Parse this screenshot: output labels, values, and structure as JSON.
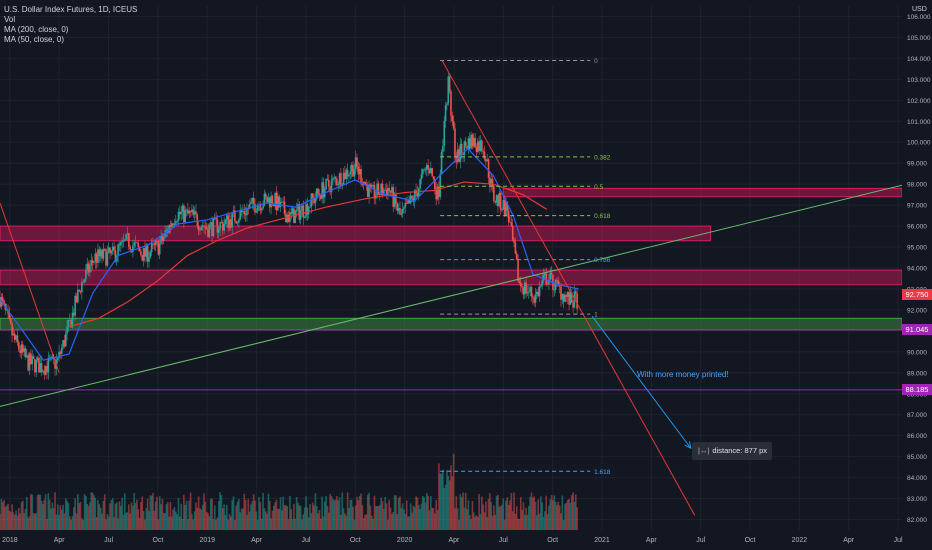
{
  "legend": {
    "symbol": "U.S. Dollar Index Futures, 1D, ICEUS",
    "vol": "Vol",
    "ma200": "MA (200, close, 0)",
    "ma50": "MA (50, close, 0)"
  },
  "axis": {
    "currency": "USD"
  },
  "annotations": {
    "arrow_text": "With more money printed!",
    "tooltip_text": "distance: 877 px",
    "tooltip_icon": "measure-icon"
  },
  "price_tags": [
    {
      "label": "92.750",
      "value": 92.75,
      "color": "#f23645"
    },
    {
      "label": "91.045",
      "value": 91.045,
      "color": "#9c27b0"
    },
    {
      "label": "88.185",
      "value": 88.185,
      "color": "#9c27b0"
    }
  ],
  "colors": {
    "background": "#131722",
    "grid": "#1e222d",
    "candle_up": "#26a69a",
    "candle_down": "#ef5350",
    "ma200": "#e53935",
    "ma50": "#2962ff",
    "zone_red": "#d81b60",
    "zone_green": "#43a047",
    "trend_green": "#66bb6a",
    "trend_red": "#e53935",
    "fib_text": "#8bc34a"
  },
  "chart_data": {
    "type": "candlestick",
    "title": "U.S. Dollar Index Futures, 1D, ICEUS",
    "x_ticks": [
      "2018",
      "Apr",
      "Jul",
      "Oct",
      "2019",
      "Apr",
      "Jul",
      "Oct",
      "2020",
      "Apr",
      "Jul",
      "Oct",
      "2021",
      "Apr",
      "Jul",
      "Oct",
      "2022",
      "Apr",
      "Jul"
    ],
    "x_tick_dates": [
      2018.0,
      2018.25,
      2018.5,
      2018.75,
      2019.0,
      2019.25,
      2019.5,
      2019.75,
      2020.0,
      2020.25,
      2020.5,
      2020.75,
      2021.0,
      2021.25,
      2021.5,
      2021.75,
      2022.0,
      2022.25,
      2022.5
    ],
    "x_range": [
      2017.95,
      2022.52
    ],
    "y_ticks": [
      "82.000",
      "83.000",
      "84.000",
      "85.000",
      "86.000",
      "87.000",
      "88.000",
      "89.000",
      "90.000",
      "91.000",
      "92.000",
      "93.000",
      "94.000",
      "95.000",
      "96.000",
      "97.000",
      "98.000",
      "99.000",
      "100.000",
      "101.000",
      "102.000",
      "103.000",
      "104.000",
      "105.000",
      "106.000"
    ],
    "ylim": [
      81.5,
      106.5
    ],
    "price_path": [
      {
        "x": 2017.95,
        "y": 92.6
      },
      {
        "x": 2018.02,
        "y": 90.6
      },
      {
        "x": 2018.09,
        "y": 89.5
      },
      {
        "x": 2018.17,
        "y": 89.3
      },
      {
        "x": 2018.24,
        "y": 89.5
      },
      {
        "x": 2018.3,
        "y": 91.2
      },
      {
        "x": 2018.36,
        "y": 93.2
      },
      {
        "x": 2018.43,
        "y": 94.5
      },
      {
        "x": 2018.52,
        "y": 94.6
      },
      {
        "x": 2018.6,
        "y": 95.3
      },
      {
        "x": 2018.68,
        "y": 94.6
      },
      {
        "x": 2018.76,
        "y": 95.1
      },
      {
        "x": 2018.84,
        "y": 96.6
      },
      {
        "x": 2018.92,
        "y": 96.5
      },
      {
        "x": 2019.0,
        "y": 95.9
      },
      {
        "x": 2019.08,
        "y": 96.1
      },
      {
        "x": 2019.17,
        "y": 96.6
      },
      {
        "x": 2019.25,
        "y": 97.1
      },
      {
        "x": 2019.33,
        "y": 97.3
      },
      {
        "x": 2019.42,
        "y": 96.4
      },
      {
        "x": 2019.5,
        "y": 96.9
      },
      {
        "x": 2019.58,
        "y": 97.7
      },
      {
        "x": 2019.67,
        "y": 98.3
      },
      {
        "x": 2019.75,
        "y": 98.9
      },
      {
        "x": 2019.83,
        "y": 97.5
      },
      {
        "x": 2019.92,
        "y": 97.8
      },
      {
        "x": 2019.98,
        "y": 96.4
      },
      {
        "x": 2020.05,
        "y": 97.4
      },
      {
        "x": 2020.12,
        "y": 99.0
      },
      {
        "x": 2020.17,
        "y": 97.4
      },
      {
        "x": 2020.22,
        "y": 102.9
      },
      {
        "x": 2020.26,
        "y": 99.2
      },
      {
        "x": 2020.33,
        "y": 100.1
      },
      {
        "x": 2020.4,
        "y": 99.8
      },
      {
        "x": 2020.45,
        "y": 97.4
      },
      {
        "x": 2020.52,
        "y": 96.8
      },
      {
        "x": 2020.58,
        "y": 93.3
      },
      {
        "x": 2020.66,
        "y": 92.6
      },
      {
        "x": 2020.72,
        "y": 93.6
      },
      {
        "x": 2020.78,
        "y": 93.0
      },
      {
        "x": 2020.84,
        "y": 92.4
      },
      {
        "x": 2020.88,
        "y": 92.5
      }
    ],
    "ma50": [
      {
        "x": 2017.95,
        "y": 92.5
      },
      {
        "x": 2018.05,
        "y": 91.2
      },
      {
        "x": 2018.17,
        "y": 89.6
      },
      {
        "x": 2018.3,
        "y": 89.9
      },
      {
        "x": 2018.42,
        "y": 92.8
      },
      {
        "x": 2018.55,
        "y": 94.6
      },
      {
        "x": 2018.7,
        "y": 95.1
      },
      {
        "x": 2018.85,
        "y": 96.1
      },
      {
        "x": 2019.0,
        "y": 96.3
      },
      {
        "x": 2019.15,
        "y": 96.7
      },
      {
        "x": 2019.3,
        "y": 97.1
      },
      {
        "x": 2019.45,
        "y": 96.9
      },
      {
        "x": 2019.6,
        "y": 97.6
      },
      {
        "x": 2019.75,
        "y": 98.2
      },
      {
        "x": 2019.9,
        "y": 97.5
      },
      {
        "x": 2020.05,
        "y": 97.2
      },
      {
        "x": 2020.2,
        "y": 98.6
      },
      {
        "x": 2020.32,
        "y": 99.7
      },
      {
        "x": 2020.45,
        "y": 98.4
      },
      {
        "x": 2020.55,
        "y": 96.5
      },
      {
        "x": 2020.65,
        "y": 93.7
      },
      {
        "x": 2020.78,
        "y": 93.2
      },
      {
        "x": 2020.88,
        "y": 93.0
      }
    ],
    "ma200": [
      {
        "x": 2018.3,
        "y": 91.2
      },
      {
        "x": 2018.45,
        "y": 91.6
      },
      {
        "x": 2018.6,
        "y": 92.4
      },
      {
        "x": 2018.75,
        "y": 93.4
      },
      {
        "x": 2018.9,
        "y": 94.6
      },
      {
        "x": 2019.05,
        "y": 95.3
      },
      {
        "x": 2019.2,
        "y": 95.9
      },
      {
        "x": 2019.4,
        "y": 96.4
      },
      {
        "x": 2019.6,
        "y": 96.9
      },
      {
        "x": 2019.8,
        "y": 97.3
      },
      {
        "x": 2020.0,
        "y": 97.6
      },
      {
        "x": 2020.15,
        "y": 97.7
      },
      {
        "x": 2020.3,
        "y": 98.1
      },
      {
        "x": 2020.45,
        "y": 98.0
      },
      {
        "x": 2020.6,
        "y": 97.5
      },
      {
        "x": 2020.72,
        "y": 96.8
      }
    ],
    "fib_levels": [
      {
        "label": "0",
        "value": 103.9
      },
      {
        "label": "0.382",
        "value": 99.3
      },
      {
        "label": "0.5",
        "value": 97.9
      },
      {
        "label": "0.618",
        "value": 96.5
      },
      {
        "label": "0.786",
        "value": 94.4
      },
      {
        "label": "1",
        "value": 91.8
      },
      {
        "label": "1.618",
        "value": 84.3
      }
    ],
    "fib_x_range": [
      2020.18,
      2020.94
    ],
    "zones": [
      {
        "color": "red",
        "x_start": 2017.95,
        "x_end": 2021.55,
        "y_low": 95.3,
        "y_high": 96.0
      },
      {
        "color": "red",
        "x_start": 2020.5,
        "x_end": 2022.52,
        "y_low": 97.4,
        "y_high": 97.8
      },
      {
        "color": "red",
        "x_start": 2017.95,
        "x_end": 2022.52,
        "y_low": 93.2,
        "y_high": 93.9
      },
      {
        "color": "green",
        "x_start": 2017.95,
        "x_end": 2022.52,
        "y_low": 91.05,
        "y_high": 91.6
      }
    ],
    "hlines": [
      {
        "value": 91.045,
        "color": "#9c27b0"
      },
      {
        "value": 88.185,
        "color": "#9c27b0"
      }
    ],
    "trendlines": [
      {
        "color": "green",
        "from": {
          "x": 2017.95,
          "y": 87.4
        },
        "to": {
          "x": 2022.52,
          "y": 97.95
        }
      },
      {
        "color": "red",
        "from": {
          "x": 2020.19,
          "y": 103.9
        },
        "to": {
          "x": 2021.47,
          "y": 82.2
        }
      },
      {
        "color": "red",
        "from": {
          "x": 2017.95,
          "y": 97.1
        },
        "to": {
          "x": 2018.25,
          "y": 89.0
        }
      }
    ],
    "arrow": {
      "from": {
        "x": 2020.95,
        "y": 91.7
      },
      "to": {
        "x": 2021.45,
        "y": 85.4
      }
    }
  }
}
